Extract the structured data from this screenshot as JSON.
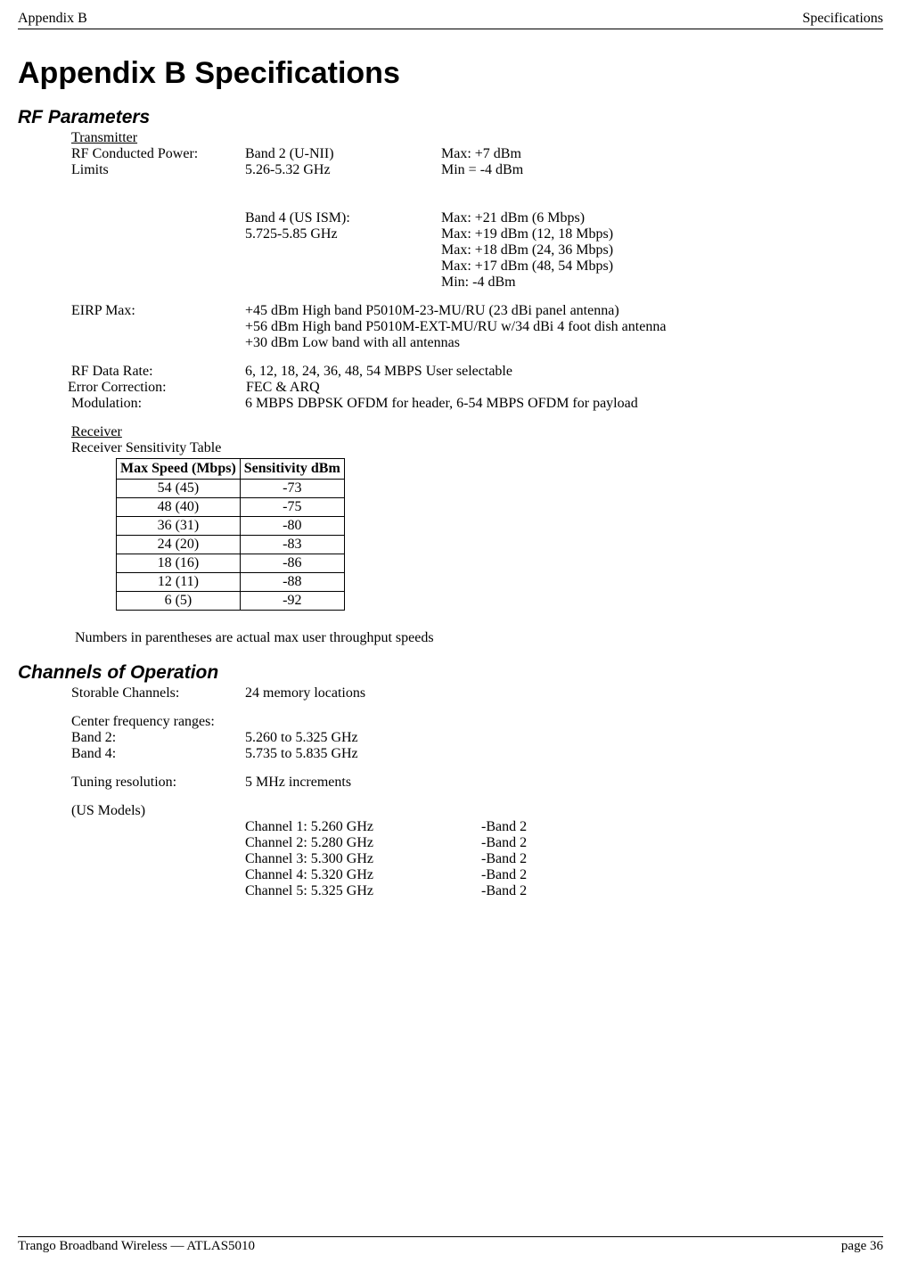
{
  "header": {
    "left": "Appendix B",
    "right": "Specifications"
  },
  "title": "Appendix B   Specifications",
  "rf": {
    "heading": "RF Parameters",
    "transmitter_heading": "Transmitter",
    "rf_conducted_label": "RF Conducted Power:",
    "limits_label": "Limits",
    "band2_label": "Band 2   (U-NII)",
    "band2_freq": "5.26-5.32 GHz",
    "band2_max": "Max: +7 dBm",
    "band2_min": "Min = -4 dBm",
    "band4_label": "Band 4 (US ISM):",
    "band4_freq": "5.725-5.85 GHz",
    "band4_line1": "Max: +21 dBm (6 Mbps)",
    "band4_line2": "Max: +19 dBm (12, 18 Mbps)",
    "band4_line3": "Max: +18 dBm (24, 36 Mbps)",
    "band4_line4": "Max: +17 dBm (48, 54 Mbps)",
    "band4_line5": "Min:  -4 dBm",
    "eirp_label": "EIRP Max:",
    "eirp_line1": "+45 dBm High band P5010M-23-MU/RU (23 dBi panel antenna)",
    "eirp_line2": "+56 dBm High band P5010M-EXT-MU/RU w/34 dBi 4 foot dish antenna",
    "eirp_line3": "+30 dBm Low band with all antennas",
    "data_rate_label": "RF Data Rate:",
    "data_rate_val": "6, 12, 18, 24, 36, 48, 54 MBPS User selectable",
    "ec_label": "Error Correction:",
    "ec_val": " FEC & ARQ",
    "mod_label": "Modulation:",
    "mod_val": "6 MBPS DBPSK OFDM for header, 6-54 MBPS OFDM for payload",
    "receiver_heading": "Receiver",
    "rst_label": "Receiver Sensitivity Table",
    "table": {
      "col1": "Max Speed (Mbps)",
      "col2": "Sensitivity dBm",
      "rows": [
        {
          "speed": "54 (45)",
          "sens": "-73"
        },
        {
          "speed": "48 (40)",
          "sens": "-75"
        },
        {
          "speed": "36 (31)",
          "sens": "-80"
        },
        {
          "speed": "24 (20)",
          "sens": "-83"
        },
        {
          "speed": "18 (16)",
          "sens": "-86"
        },
        {
          "speed": "12 (11)",
          "sens": "-88"
        },
        {
          "speed": "6 (5)",
          "sens": "-92"
        }
      ]
    },
    "note": "Numbers in parentheses are actual max user throughput speeds"
  },
  "channels": {
    "heading": "Channels of Operation",
    "storable_label": "Storable Channels:",
    "storable_val": "24 memory locations",
    "cfr_label": "Center frequency ranges:",
    "band2_label": "Band 2:",
    "band2_val": "5.260 to 5.325 GHz",
    "band4_label": "Band 4:",
    "band4_val": "5.735 to 5.835 GHz",
    "tuning_label": "Tuning resolution:",
    "tuning_val": "5 MHz increments",
    "us_models": "(US Models)",
    "list": [
      {
        "ch": "Channel 1: 5.260 GHz",
        "band": "-Band 2"
      },
      {
        "ch": "Channel 2: 5.280 GHz",
        "band": "-Band 2"
      },
      {
        "ch": "Channel 3: 5.300 GHz",
        "band": "-Band 2"
      },
      {
        "ch": "Channel 4: 5.320 GHz",
        "band": "-Band 2"
      },
      {
        "ch": "Channel 5: 5.325 GHz",
        "band": "-Band 2"
      }
    ]
  },
  "footer": {
    "left": "Trango Broadband Wireless — ATLAS5010",
    "right": "page 36"
  }
}
